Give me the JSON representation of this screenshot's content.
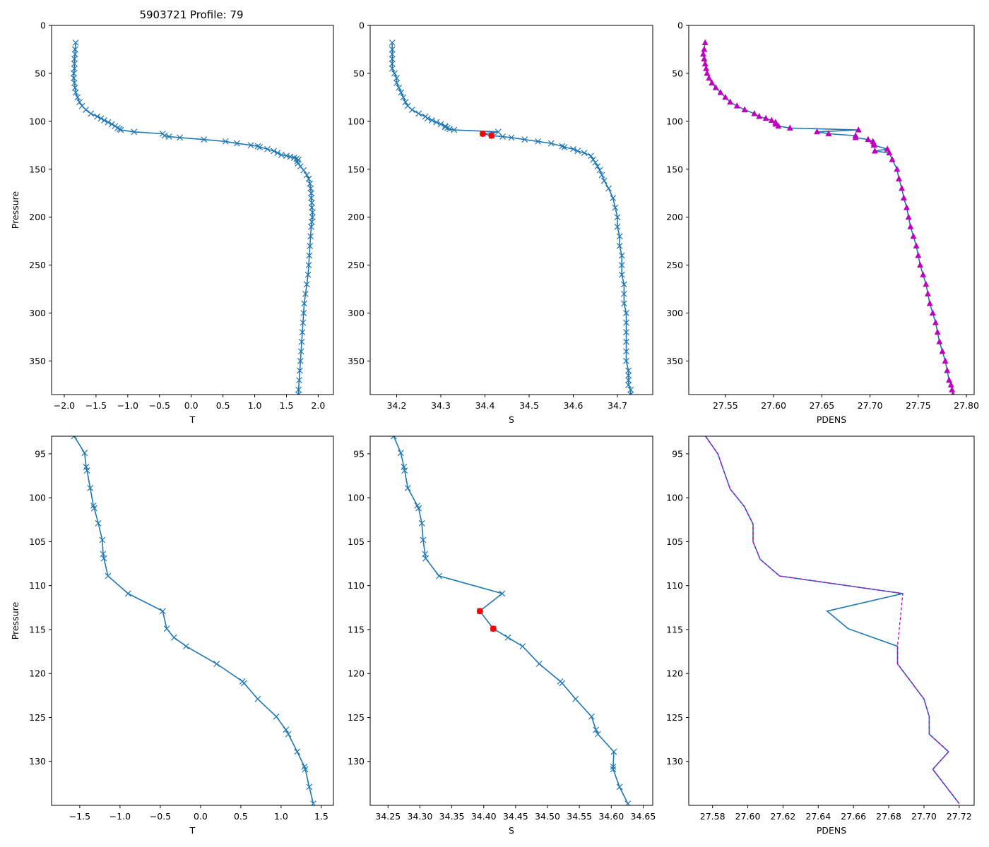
{
  "title": "5903721 Profile: 79",
  "colors": {
    "line": "#1f77b4",
    "pdens_marker": "#bf00bf",
    "flag": "#ff0000"
  },
  "chart_data": [
    {
      "id": "top-t",
      "type": "line",
      "xlabel": "T",
      "ylabel": "Pressure",
      "xlim": [
        -2.2,
        2.24
      ],
      "ylim": [
        385,
        0
      ],
      "marker": "x",
      "xticks": [
        "-2.0",
        "-1.5",
        "-1.0",
        "-0.5",
        "0.0",
        "0.5",
        "1.0",
        "1.5",
        "2.0"
      ],
      "yticks": [
        "0",
        "50",
        "100",
        "150",
        "200",
        "250",
        "300",
        "350"
      ],
      "series": [
        {
          "name": "T",
          "x": [
            -1.82,
            -1.83,
            -1.83,
            -1.84,
            -1.84,
            -1.84,
            -1.85,
            -1.85,
            -1.84,
            -1.83,
            -1.82,
            -1.79,
            -1.76,
            -1.72,
            -1.66,
            -1.58,
            -1.48,
            -1.42,
            -1.37,
            -1.31,
            -1.25,
            -1.2,
            -1.16,
            -1.13,
            -1.11,
            -0.9,
            -0.45,
            -0.42,
            -0.35,
            -0.18,
            0.2,
            0.54,
            0.72,
            0.94,
            1.05,
            1.08,
            1.2,
            1.3,
            1.36,
            1.42,
            1.5,
            1.56,
            1.62,
            1.66,
            1.69,
            1.67,
            1.68,
            1.72,
            1.77,
            1.82,
            1.85,
            1.87,
            1.88,
            1.89,
            1.89,
            1.9,
            1.9,
            1.91,
            1.91,
            1.9,
            1.89,
            1.88,
            1.87,
            1.86,
            1.85,
            1.84,
            1.82,
            1.8,
            1.78,
            1.77,
            1.76,
            1.75,
            1.74,
            1.73,
            1.72,
            1.71,
            1.7,
            1.69,
            1.69
          ],
          "y": [
            18,
            25,
            30,
            35,
            40,
            45,
            50,
            55,
            60,
            65,
            70,
            75,
            80,
            84,
            88,
            92,
            95,
            97,
            99,
            101,
            103,
            105,
            107,
            108,
            109,
            111,
            113,
            115,
            116,
            117,
            119,
            121,
            123,
            125,
            126,
            127,
            129,
            131,
            133,
            135,
            136,
            137,
            138,
            139,
            140,
            142,
            144,
            147,
            151,
            156,
            160,
            165,
            170,
            175,
            180,
            185,
            190,
            195,
            200,
            205,
            210,
            220,
            230,
            240,
            250,
            260,
            270,
            280,
            290,
            300,
            310,
            320,
            330,
            340,
            350,
            360,
            370,
            380,
            385
          ]
        }
      ]
    },
    {
      "id": "top-s",
      "type": "line",
      "xlabel": "S",
      "ylabel": "",
      "xlim": [
        34.14,
        34.78
      ],
      "ylim": [
        385,
        0
      ],
      "marker": "x",
      "xticks": [
        "34.2",
        "34.3",
        "34.4",
        "34.5",
        "34.6",
        "34.7"
      ],
      "yticks": [
        "0",
        "50",
        "100",
        "150",
        "200",
        "250",
        "300",
        "350"
      ],
      "series": [
        {
          "name": "S",
          "x": [
            34.19,
            34.19,
            34.19,
            34.19,
            34.19,
            34.19,
            34.195,
            34.2,
            34.2,
            34.205,
            34.21,
            34.215,
            34.22,
            34.225,
            34.235,
            34.25,
            34.265,
            34.27,
            34.28,
            34.29,
            34.3,
            34.31,
            34.31,
            34.315,
            34.32,
            34.33,
            34.43,
            34.395,
            34.415,
            34.44,
            34.46,
            34.49,
            34.52,
            34.55,
            34.575,
            34.58,
            34.6,
            34.61,
            34.625,
            34.64,
            34.645,
            34.65,
            34.655,
            34.66,
            34.665,
            34.67,
            34.68,
            34.69,
            34.695,
            34.7,
            34.7,
            34.705,
            34.705,
            34.71,
            34.71,
            34.71,
            34.715,
            34.715,
            34.715,
            34.72,
            34.72,
            34.72,
            34.72,
            34.72,
            34.72,
            34.725,
            34.725,
            34.725,
            34.725,
            34.73,
            34.73
          ],
          "y": [
            18,
            25,
            30,
            35,
            40,
            45,
            50,
            55,
            60,
            65,
            70,
            75,
            80,
            84,
            88,
            92,
            95,
            97,
            99,
            101,
            103,
            105,
            106,
            107,
            108,
            109,
            111,
            113,
            115,
            116,
            117,
            119,
            121,
            123,
            126,
            127,
            129,
            131,
            133,
            136,
            140,
            143,
            147,
            151,
            156,
            162,
            170,
            180,
            190,
            200,
            210,
            220,
            230,
            240,
            250,
            260,
            270,
            280,
            290,
            300,
            310,
            320,
            330,
            340,
            350,
            360,
            365,
            370,
            375,
            380,
            385
          ]
        }
      ],
      "flagged": {
        "x": [
          34.395,
          34.415
        ],
        "y": [
          113,
          115
        ]
      }
    },
    {
      "id": "top-pdens",
      "type": "line",
      "xlabel": "PDENS",
      "ylabel": "",
      "xlim": [
        27.512,
        27.808
      ],
      "ylim": [
        385,
        0
      ],
      "marker": "triangle",
      "xticks": [
        "27.55",
        "27.60",
        "27.65",
        "27.70",
        "27.75",
        "27.80"
      ],
      "yticks": [
        "0",
        "50",
        "100",
        "150",
        "200",
        "250",
        "300",
        "350"
      ],
      "series": [
        {
          "name": "PDENS",
          "x": [
            27.529,
            27.528,
            27.527,
            27.528,
            27.529,
            27.53,
            27.531,
            27.533,
            27.536,
            27.54,
            27.545,
            27.55,
            27.555,
            27.562,
            27.57,
            27.58,
            27.585,
            27.592,
            27.598,
            27.602,
            27.602,
            27.605,
            27.617,
            27.688,
            27.645,
            27.657,
            27.685,
            27.685,
            27.698,
            27.703,
            27.704,
            27.704,
            27.718,
            27.705,
            27.72,
            27.723,
            27.728,
            27.73,
            27.733,
            27.735,
            27.738,
            27.74,
            27.742,
            27.745,
            27.748,
            27.75,
            27.752,
            27.755,
            27.758,
            27.76,
            27.762,
            27.765,
            27.768,
            27.77,
            27.772,
            27.775,
            27.778,
            27.78,
            27.782,
            27.784,
            27.785,
            27.786
          ],
          "y": [
            18,
            25,
            30,
            35,
            40,
            45,
            50,
            55,
            60,
            65,
            70,
            75,
            80,
            84,
            88,
            92,
            95,
            97,
            99,
            101,
            103,
            105,
            107,
            109,
            111,
            113,
            115,
            117,
            119,
            121,
            123,
            125,
            129,
            131,
            133,
            140,
            150,
            160,
            170,
            180,
            190,
            200,
            210,
            220,
            230,
            240,
            250,
            260,
            270,
            280,
            290,
            300,
            310,
            320,
            330,
            340,
            350,
            360,
            370,
            375,
            380,
            385
          ]
        }
      ]
    },
    {
      "id": "bottom-t",
      "type": "line",
      "xlabel": "T",
      "ylabel": "Pressure",
      "xlim": [
        -1.85,
        1.65
      ],
      "ylim": [
        135,
        93
      ],
      "marker": "x",
      "xticks": [
        "-1.5",
        "-1.0",
        "-0.5",
        "0.0",
        "0.5",
        "1.0",
        "1.5"
      ],
      "yticks": [
        "95",
        "100",
        "105",
        "110",
        "115",
        "120",
        "125",
        "130"
      ],
      "series": [
        {
          "name": "T",
          "x": [
            -1.57,
            -1.44,
            -1.42,
            -1.41,
            -1.37,
            -1.33,
            -1.32,
            -1.27,
            -1.22,
            -1.21,
            -1.2,
            -1.15,
            -0.9,
            -0.47,
            -0.42,
            -0.33,
            -0.18,
            0.2,
            0.52,
            0.54,
            0.71,
            0.94,
            1.06,
            1.09,
            1.2,
            1.29,
            1.3,
            1.35,
            1.4
          ],
          "y": [
            93,
            94.9,
            96.5,
            96.9,
            98.9,
            100.9,
            101.2,
            102.9,
            104.8,
            106.4,
            106.9,
            108.9,
            110.9,
            112.9,
            114.9,
            115.9,
            116.9,
            118.9,
            120.9,
            121.1,
            122.9,
            124.9,
            126.4,
            126.9,
            128.9,
            130.6,
            130.9,
            132.9,
            134.8
          ]
        }
      ]
    },
    {
      "id": "bottom-s",
      "type": "line",
      "xlabel": "S",
      "ylabel": "",
      "xlim": [
        34.222,
        34.665
      ],
      "ylim": [
        135,
        93
      ],
      "marker": "x",
      "xticks": [
        "34.25",
        "34.30",
        "34.35",
        "34.40",
        "34.45",
        "34.50",
        "34.55",
        "34.60",
        "34.65"
      ],
      "yticks": [
        "95",
        "100",
        "105",
        "110",
        "115",
        "120",
        "125",
        "130"
      ],
      "series": [
        {
          "name": "S",
          "x": [
            34.259,
            34.27,
            34.275,
            34.276,
            34.281,
            34.296,
            34.298,
            34.303,
            34.305,
            34.308,
            34.309,
            34.33,
            34.429,
            34.394,
            34.415,
            34.438,
            34.461,
            34.487,
            34.52,
            34.523,
            34.544,
            34.569,
            34.576,
            34.579,
            34.604,
            34.603,
            34.603,
            34.613,
            34.626
          ],
          "y": [
            93,
            94.9,
            96.5,
            96.9,
            98.9,
            100.9,
            101.2,
            102.9,
            104.8,
            106.4,
            106.9,
            108.9,
            110.9,
            112.9,
            114.9,
            115.9,
            116.9,
            118.9,
            120.9,
            121.1,
            122.9,
            124.9,
            126.4,
            126.9,
            128.9,
            130.6,
            130.9,
            132.9,
            134.8
          ]
        }
      ],
      "flagged": {
        "x": [
          34.394,
          34.415
        ],
        "y": [
          112.9,
          114.9
        ]
      }
    },
    {
      "id": "bottom-pdens",
      "type": "line",
      "xlabel": "PDENS",
      "ylabel": "",
      "xlim": [
        27.5665,
        27.7285
      ],
      "ylim": [
        135,
        93
      ],
      "marker": "none",
      "xticks": [
        "27.58",
        "27.60",
        "27.62",
        "27.64",
        "27.66",
        "27.68",
        "27.70",
        "27.72"
      ],
      "yticks": [
        "95",
        "100",
        "105",
        "110",
        "115",
        "120",
        "125",
        "130"
      ],
      "series": [
        {
          "name": "PDENS",
          "x": [
            27.576,
            27.583,
            27.59,
            27.598,
            27.603,
            27.603,
            27.607,
            27.618,
            27.688,
            27.645,
            27.657,
            27.685,
            27.685,
            27.7,
            27.703,
            27.703,
            27.714,
            27.705,
            27.72
          ],
          "y": [
            93,
            95,
            99,
            101,
            103,
            105,
            107,
            108.9,
            110.9,
            112.9,
            114.9,
            116.9,
            118.9,
            122.9,
            124.9,
            126.9,
            128.9,
            130.9,
            134.8
          ]
        },
        {
          "name": "PDENS-dashed",
          "x": [
            27.576,
            27.583,
            27.59,
            27.598,
            27.603,
            27.603,
            27.607,
            27.618,
            27.688,
            27.685,
            27.685,
            27.7,
            27.703,
            27.703,
            27.714,
            27.705,
            27.72
          ],
          "y": [
            93,
            95,
            99,
            101,
            103,
            105,
            107,
            108.9,
            110.9,
            116.9,
            118.9,
            122.9,
            124.9,
            126.9,
            128.9,
            130.9,
            134.8
          ]
        }
      ]
    }
  ]
}
